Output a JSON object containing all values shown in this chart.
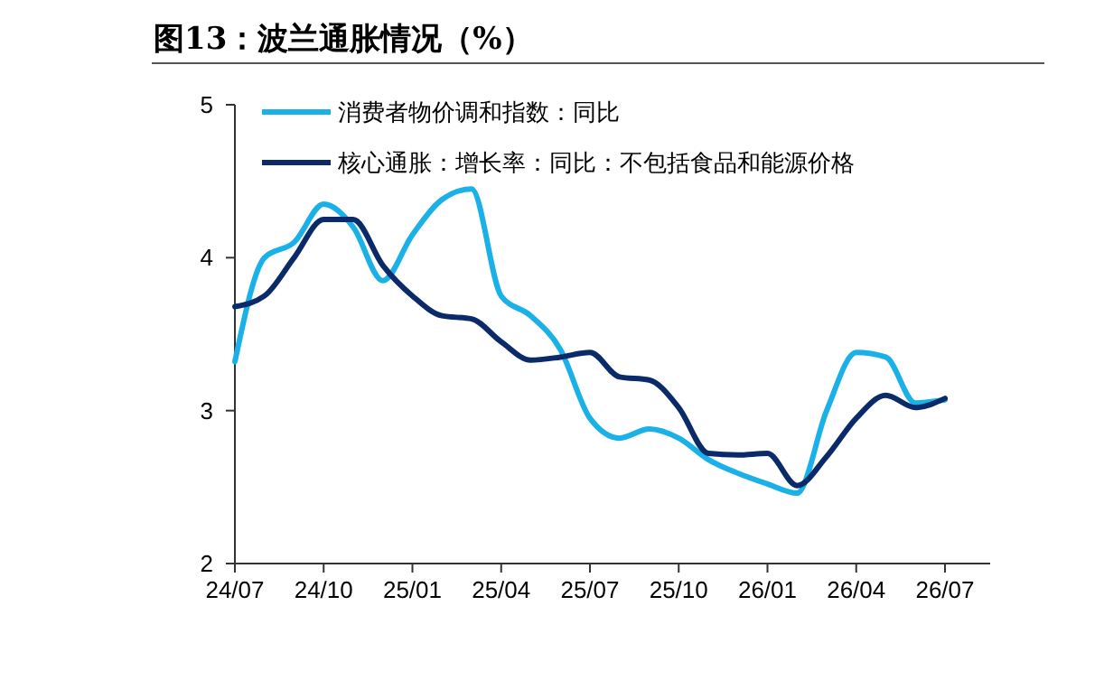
{
  "chart_data": {
    "type": "line",
    "title": "图13：波兰通胀情况（%）",
    "legend": "top left",
    "grid": false,
    "line_style": "solid",
    "marker": "none",
    "categories": [
      "24/07",
      null,
      null,
      "24/10",
      null,
      null,
      "25/01",
      null,
      null,
      "25/04",
      null,
      null,
      "25/07",
      null,
      null,
      "25/10",
      null,
      null,
      "26/01",
      null,
      null,
      "26/04",
      null,
      null,
      "26/07"
    ],
    "ylim": [
      2,
      5
    ],
    "yticks": [
      2,
      3,
      4,
      5
    ],
    "series": [
      {
        "name": "消费者物价调和指数：同比",
        "color": "#1ab0e8",
        "values": [
          3.32,
          4.0,
          4.1,
          4.35,
          4.2,
          3.85,
          4.15,
          4.38,
          4.45,
          3.75,
          3.62,
          3.4,
          2.95,
          2.82,
          2.88,
          2.82,
          2.68,
          2.59,
          2.52,
          2.46,
          3.0,
          3.38,
          3.35,
          3.05,
          3.07
        ]
      },
      {
        "name": "核心通胀：增长率：同比：不包括食品和能源价格",
        "color": "#0a2a6a",
        "values": [
          3.68,
          3.75,
          4.0,
          4.25,
          4.25,
          3.95,
          3.75,
          3.62,
          3.6,
          3.45,
          3.33,
          3.35,
          3.38,
          3.22,
          3.2,
          3.02,
          2.72,
          2.71,
          2.72,
          2.51,
          2.7,
          2.95,
          3.1,
          3.02,
          3.08
        ]
      }
    ]
  }
}
